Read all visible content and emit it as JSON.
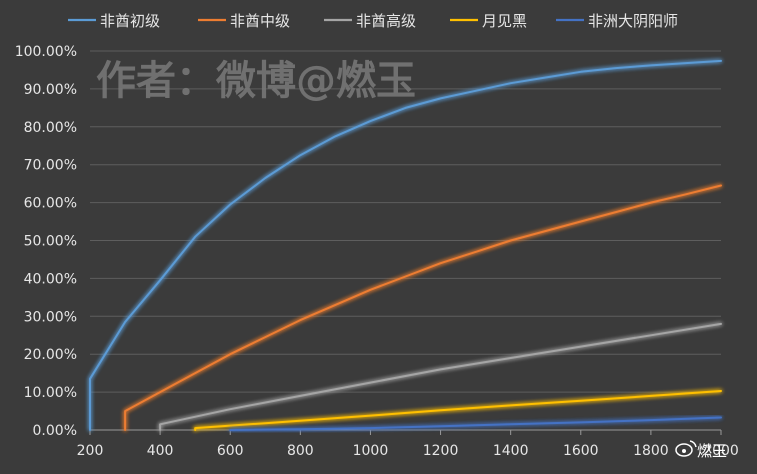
{
  "watermark": "作者：微博@燃玉",
  "weibo_mark": "燃玉",
  "chart_data": {
    "type": "line",
    "xlabel": "",
    "ylabel": "",
    "xlim": [
      200,
      2000
    ],
    "ylim": [
      0,
      1
    ],
    "x_ticks": [
      "200",
      "400",
      "600",
      "800",
      "1000",
      "1200",
      "1400",
      "1600",
      "1800",
      "2000"
    ],
    "y_ticks": [
      "0.00%",
      "10.00%",
      "20.00%",
      "30.00%",
      "40.00%",
      "50.00%",
      "60.00%",
      "70.00%",
      "80.00%",
      "90.00%",
      "100.00%"
    ],
    "grid": "horizontal",
    "legend_position": "top",
    "series": [
      {
        "name": "非酋初级",
        "color": "#5b9bd5",
        "points": [
          [
            200,
            0
          ],
          [
            200,
            0.135
          ],
          [
            300,
            0.285
          ],
          [
            400,
            0.395
          ],
          [
            500,
            0.51
          ],
          [
            600,
            0.595
          ],
          [
            700,
            0.665
          ],
          [
            800,
            0.725
          ],
          [
            900,
            0.775
          ],
          [
            1000,
            0.815
          ],
          [
            1100,
            0.85
          ],
          [
            1200,
            0.875
          ],
          [
            1300,
            0.895
          ],
          [
            1400,
            0.915
          ],
          [
            1500,
            0.93
          ],
          [
            1600,
            0.945
          ],
          [
            1700,
            0.955
          ],
          [
            1800,
            0.962
          ],
          [
            1900,
            0.968
          ],
          [
            2000,
            0.974
          ]
        ]
      },
      {
        "name": "非酋中级",
        "color": "#ed7d31",
        "points": [
          [
            300,
            0
          ],
          [
            300,
            0.05
          ],
          [
            400,
            0.1
          ],
          [
            500,
            0.15
          ],
          [
            600,
            0.2
          ],
          [
            700,
            0.245
          ],
          [
            800,
            0.29
          ],
          [
            900,
            0.33
          ],
          [
            1000,
            0.37
          ],
          [
            1100,
            0.405
          ],
          [
            1200,
            0.44
          ],
          [
            1300,
            0.47
          ],
          [
            1400,
            0.5
          ],
          [
            1500,
            0.525
          ],
          [
            1600,
            0.55
          ],
          [
            1700,
            0.575
          ],
          [
            1800,
            0.6
          ],
          [
            1900,
            0.622
          ],
          [
            2000,
            0.645
          ]
        ]
      },
      {
        "name": "非酋高级",
        "color": "#a5a5a5",
        "points": [
          [
            400,
            0
          ],
          [
            400,
            0.015
          ],
          [
            600,
            0.055
          ],
          [
            800,
            0.09
          ],
          [
            1000,
            0.125
          ],
          [
            1200,
            0.16
          ],
          [
            1400,
            0.19
          ],
          [
            1600,
            0.22
          ],
          [
            1800,
            0.25
          ],
          [
            2000,
            0.28
          ]
        ]
      },
      {
        "name": "月见黑",
        "color": "#ffc000",
        "points": [
          [
            500,
            0
          ],
          [
            500,
            0.005
          ],
          [
            700,
            0.018
          ],
          [
            1000,
            0.038
          ],
          [
            1200,
            0.052
          ],
          [
            1400,
            0.065
          ],
          [
            1600,
            0.077
          ],
          [
            1800,
            0.09
          ],
          [
            2000,
            0.103
          ]
        ]
      },
      {
        "name": "非洲大阴阳师",
        "color": "#4472c4",
        "points": [
          [
            600,
            0
          ],
          [
            800,
            0.002
          ],
          [
            1000,
            0.005
          ],
          [
            1200,
            0.01
          ],
          [
            1400,
            0.015
          ],
          [
            1600,
            0.02
          ],
          [
            1800,
            0.026
          ],
          [
            2000,
            0.033
          ]
        ]
      }
    ]
  }
}
